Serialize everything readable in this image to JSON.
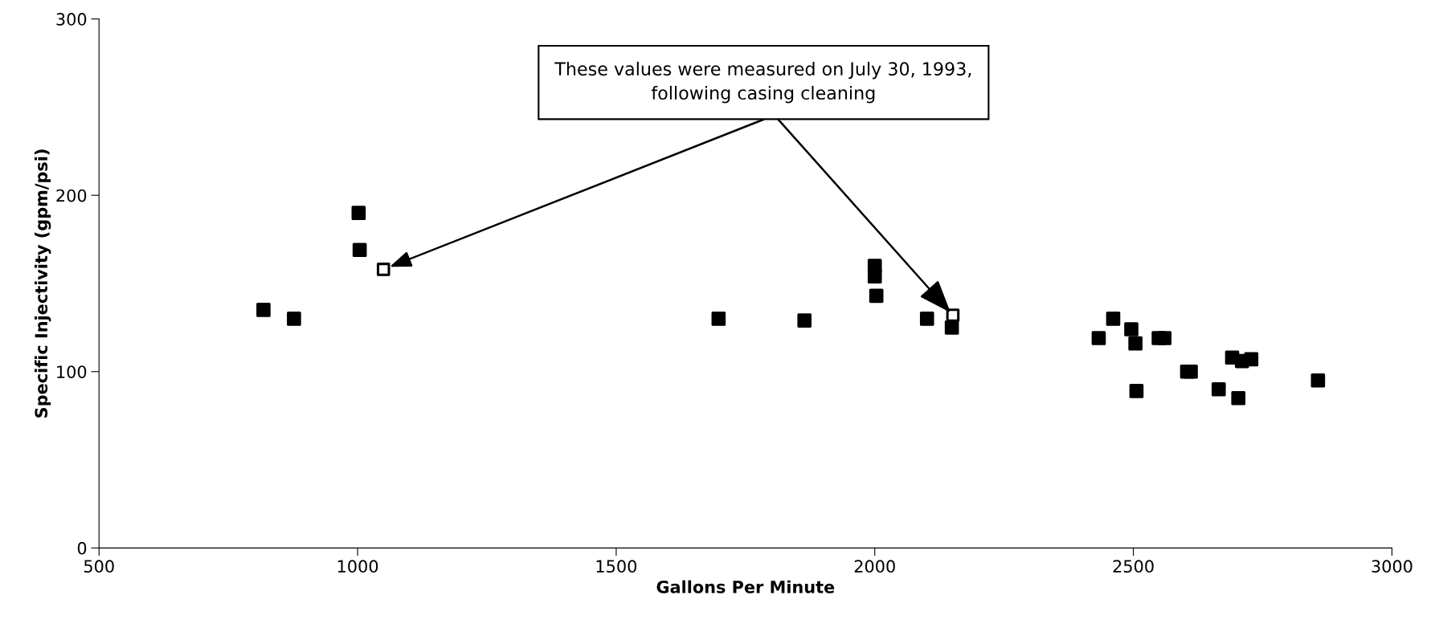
{
  "chart_data": {
    "type": "scatter",
    "xlabel": "Gallons Per Minute",
    "ylabel": "Specific Injectivity (gpm/psi)",
    "xlim": [
      500,
      3000
    ],
    "xticks": [
      500,
      1000,
      1500,
      2000,
      2500,
      3000
    ],
    "ylim": [
      0,
      300
    ],
    "yticks": [
      0,
      100,
      200,
      300
    ],
    "grid": false,
    "legend": false,
    "marker": "square",
    "series": [
      {
        "color": "#000000",
        "x": [
          818,
          877,
          1002,
          1004,
          1698,
          1864,
          2000,
          2000,
          2003,
          2101,
          2149,
          2433,
          2461,
          2496,
          2504,
          2506,
          2549,
          2560,
          2604,
          2611,
          2665,
          2691,
          2710,
          2728,
          2703,
          2857
        ],
        "values": [
          135,
          130,
          190,
          169,
          130,
          129,
          160,
          154,
          143,
          130,
          125,
          119,
          130,
          124,
          116,
          89,
          119,
          119,
          100,
          100,
          90,
          108,
          106,
          107,
          85,
          95
        ]
      },
      {
        "color": "#ffffff",
        "x": [
          1050,
          2151
        ],
        "values": [
          158,
          132
        ]
      }
    ],
    "annotations": [
      {
        "text": "These values were measured on July 30, 1993,\nfollowing casing cleaning",
        "x": 2151,
        "y": 132
      }
    ]
  }
}
